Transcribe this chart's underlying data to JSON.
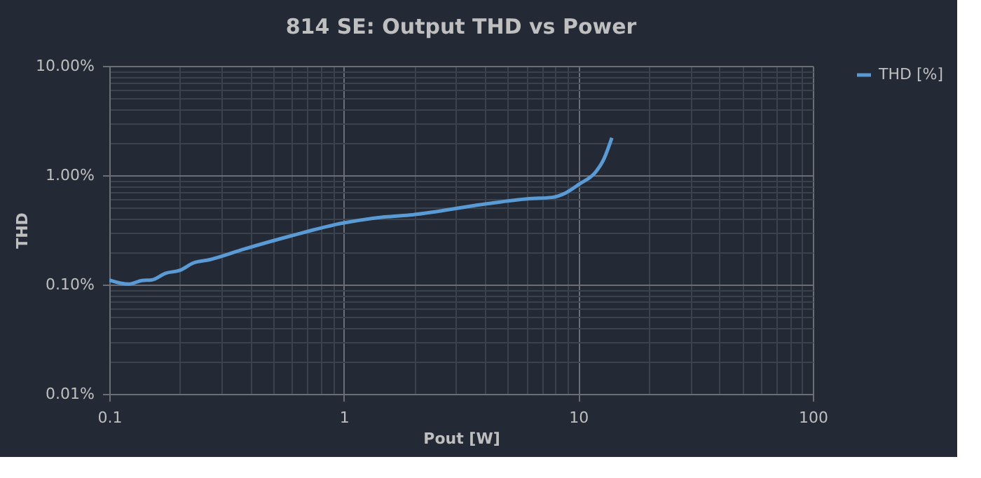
{
  "chart_data": {
    "type": "line",
    "title": "814 SE: Output THD vs Power",
    "xlabel": "Pout  [W]",
    "ylabel": "THD",
    "log": "xy",
    "grid": true,
    "legend": "right",
    "xlim": [
      0.1,
      100
    ],
    "ylim": [
      0.01,
      10
    ],
    "xticks": [
      0.1,
      {
        "value": 0.2,
        "label": null
      },
      {
        "value": 0.3,
        "label": null
      },
      {
        "value": 0.4,
        "label": null
      },
      {
        "value": 0.5,
        "label": null
      },
      {
        "value": 0.6,
        "label": null
      },
      {
        "value": 0.7,
        "label": null
      },
      {
        "value": 0.8,
        "label": null
      },
      {
        "value": 0.9,
        "label": null
      },
      1,
      {
        "value": 2,
        "label": null
      },
      {
        "value": 3,
        "label": null
      },
      {
        "value": 4,
        "label": null
      },
      {
        "value": 5,
        "label": null
      },
      {
        "value": 6,
        "label": null
      },
      {
        "value": 7,
        "label": null
      },
      {
        "value": 8,
        "label": null
      },
      {
        "value": 9,
        "label": null
      },
      10,
      {
        "value": 20,
        "label": null
      },
      {
        "value": 30,
        "label": null
      },
      {
        "value": 40,
        "label": null
      },
      {
        "value": 50,
        "label": null
      },
      {
        "value": 60,
        "label": null
      },
      {
        "value": 70,
        "label": null
      },
      {
        "value": 80,
        "label": null
      },
      {
        "value": 90,
        "label": null
      },
      100
    ],
    "yticks": [
      {
        "value": 0.01,
        "label": "0.01%"
      },
      {
        "value": 0.02,
        "label": null
      },
      {
        "value": 0.03,
        "label": null
      },
      {
        "value": 0.04,
        "label": null
      },
      {
        "value": 0.05,
        "label": null
      },
      {
        "value": 0.06,
        "label": null
      },
      {
        "value": 0.07,
        "label": null
      },
      {
        "value": 0.08,
        "label": null
      },
      {
        "value": 0.09,
        "label": null
      },
      {
        "value": 0.1,
        "label": "0.10%"
      },
      {
        "value": 0.2,
        "label": null
      },
      {
        "value": 0.3,
        "label": null
      },
      {
        "value": 0.4,
        "label": null
      },
      {
        "value": 0.5,
        "label": null
      },
      {
        "value": 0.6,
        "label": null
      },
      {
        "value": 0.7,
        "label": null
      },
      {
        "value": 0.8,
        "label": null
      },
      {
        "value": 0.9,
        "label": null
      },
      {
        "value": 1,
        "label": "1.00%"
      },
      {
        "value": 2,
        "label": null
      },
      {
        "value": 3,
        "label": null
      },
      {
        "value": 4,
        "label": null
      },
      {
        "value": 5,
        "label": null
      },
      {
        "value": 6,
        "label": null
      },
      {
        "value": 7,
        "label": null
      },
      {
        "value": 8,
        "label": null
      },
      {
        "value": 9,
        "label": null
      },
      {
        "value": 10,
        "label": "10.00%"
      }
    ],
    "series": [
      {
        "name": "THD [%]",
        "color": "#5b9bd5",
        "x": [
          0.1,
          0.121,
          0.138,
          0.151,
          0.174,
          0.2,
          0.229,
          0.268,
          0.378,
          0.596,
          0.99,
          1.49,
          1.96,
          3.88,
          6.14,
          7.71,
          8.84,
          10.1,
          11.9,
          12.8,
          13.9
        ],
        "values": [
          0.11,
          0.101,
          0.109,
          0.11,
          0.127,
          0.135,
          0.158,
          0.169,
          0.212,
          0.279,
          0.365,
          0.415,
          0.435,
          0.54,
          0.61,
          0.627,
          0.69,
          0.83,
          1.08,
          1.38,
          2.2
        ]
      }
    ]
  }
}
